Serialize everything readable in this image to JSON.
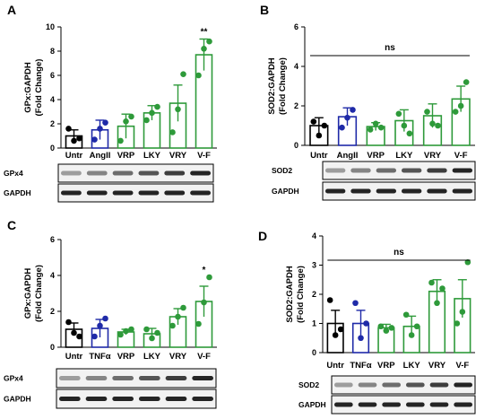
{
  "chart_data": [
    {
      "panel": "A",
      "type": "bar",
      "ylabel_lines": [
        "GPx:GAPDH",
        "(Fold  Change)"
      ],
      "ylim": [
        0,
        10
      ],
      "yticks": [
        0,
        2,
        4,
        6,
        8,
        10
      ],
      "categories": [
        "Untr",
        "AngII",
        "VRP",
        "LKY",
        "VRY",
        "V-F"
      ],
      "colors": [
        "#000000",
        "#1f2aa8",
        "#2e9a3a",
        "#2e9a3a",
        "#2e9a3a",
        "#2e9a3a"
      ],
      "values": [
        1.0,
        1.5,
        1.8,
        2.9,
        3.7,
        7.7
      ],
      "errors": [
        0.5,
        0.8,
        1.0,
        0.6,
        1.5,
        1.3
      ],
      "points": [
        [
          1.6,
          0.6,
          0.8
        ],
        [
          0.7,
          1.6,
          2.1
        ],
        [
          0.6,
          2.2,
          2.6
        ],
        [
          2.3,
          2.9,
          3.4
        ],
        [
          1.3,
          3.2,
          6.1
        ],
        [
          6.0,
          8.2,
          8.8
        ]
      ],
      "annotations": [
        {
          "category": "V-F",
          "text": "**"
        }
      ],
      "blots": [
        {
          "label": "GPx4"
        },
        {
          "label": "GAPDH"
        }
      ]
    },
    {
      "panel": "B",
      "type": "bar",
      "ylabel_lines": [
        "SOD2:GAPDH",
        "(Fold  Change)"
      ],
      "ylim": [
        0,
        6
      ],
      "yticks": [
        0,
        2,
        4,
        6
      ],
      "categories": [
        "Untr",
        "AngII",
        "VRP",
        "LKY",
        "VRY",
        "V-F"
      ],
      "colors": [
        "#000000",
        "#1f2aa8",
        "#2e9a3a",
        "#2e9a3a",
        "#2e9a3a",
        "#2e9a3a"
      ],
      "values": [
        1.0,
        1.45,
        0.95,
        1.25,
        1.5,
        2.35
      ],
      "errors": [
        0.4,
        0.45,
        0.2,
        0.55,
        0.6,
        0.65
      ],
      "points": [
        [
          1.2,
          0.5,
          1.0
        ],
        [
          0.9,
          1.4,
          1.8
        ],
        [
          0.8,
          1.1,
          0.9
        ],
        [
          1.6,
          1.0,
          0.6
        ],
        [
          1.7,
          1.1,
          1.0
        ],
        [
          1.7,
          2.0,
          3.2
        ]
      ],
      "bracket_label": "ns",
      "blots": [
        {
          "label": "SOD2"
        },
        {
          "label": "GAPDH"
        }
      ]
    },
    {
      "panel": "C",
      "type": "bar",
      "ylabel_lines": [
        "GPx:GAPDH",
        "(Fold  Change)"
      ],
      "ylim": [
        0,
        6
      ],
      "yticks": [
        0,
        2,
        4,
        6
      ],
      "categories": [
        "Untr",
        "TNFα",
        "VRP",
        "LKY",
        "VRY",
        "V-F"
      ],
      "colors": [
        "#000000",
        "#1f2aa8",
        "#2e9a3a",
        "#2e9a3a",
        "#2e9a3a",
        "#2e9a3a"
      ],
      "values": [
        1.0,
        1.05,
        0.85,
        0.75,
        1.7,
        2.55
      ],
      "errors": [
        0.35,
        0.5,
        0.15,
        0.3,
        0.45,
        0.85
      ],
      "points": [
        [
          1.4,
          0.8,
          0.6
        ],
        [
          0.6,
          1.2,
          1.6
        ],
        [
          0.7,
          0.9,
          1.0
        ],
        [
          1.0,
          0.5,
          0.8
        ],
        [
          1.2,
          1.7,
          2.2
        ],
        [
          1.3,
          2.5,
          3.9
        ]
      ],
      "annotations": [
        {
          "category": "V-F",
          "text": "*"
        }
      ],
      "blots": [
        {
          "label": "GPx4"
        },
        {
          "label": "GAPDH"
        }
      ]
    },
    {
      "panel": "D",
      "type": "bar",
      "ylabel_lines": [
        "SOD2:GAPDH",
        "(Fold  Change)"
      ],
      "ylim": [
        0,
        4
      ],
      "yticks": [
        0,
        1,
        2,
        3,
        4
      ],
      "categories": [
        "Untr",
        "TNFα",
        "VRP",
        "LKY",
        "VRY",
        "V-F"
      ],
      "colors": [
        "#000000",
        "#1f2aa8",
        "#2e9a3a",
        "#2e9a3a",
        "#2e9a3a",
        "#2e9a3a"
      ],
      "values": [
        1.0,
        1.0,
        0.85,
        0.9,
        2.1,
        1.85
      ],
      "errors": [
        0.45,
        0.45,
        0.12,
        0.35,
        0.4,
        0.65
      ],
      "points": [
        [
          1.8,
          0.6,
          0.8
        ],
        [
          1.7,
          0.5,
          1.0
        ],
        [
          0.9,
          0.75,
          0.85
        ],
        [
          1.3,
          0.6,
          0.9
        ],
        [
          2.4,
          1.7,
          2.2
        ],
        [
          1.0,
          1.4,
          3.1
        ]
      ],
      "bracket_label": "ns",
      "blots": [
        {
          "label": "SOD2"
        },
        {
          "label": "GAPDH"
        }
      ]
    }
  ]
}
